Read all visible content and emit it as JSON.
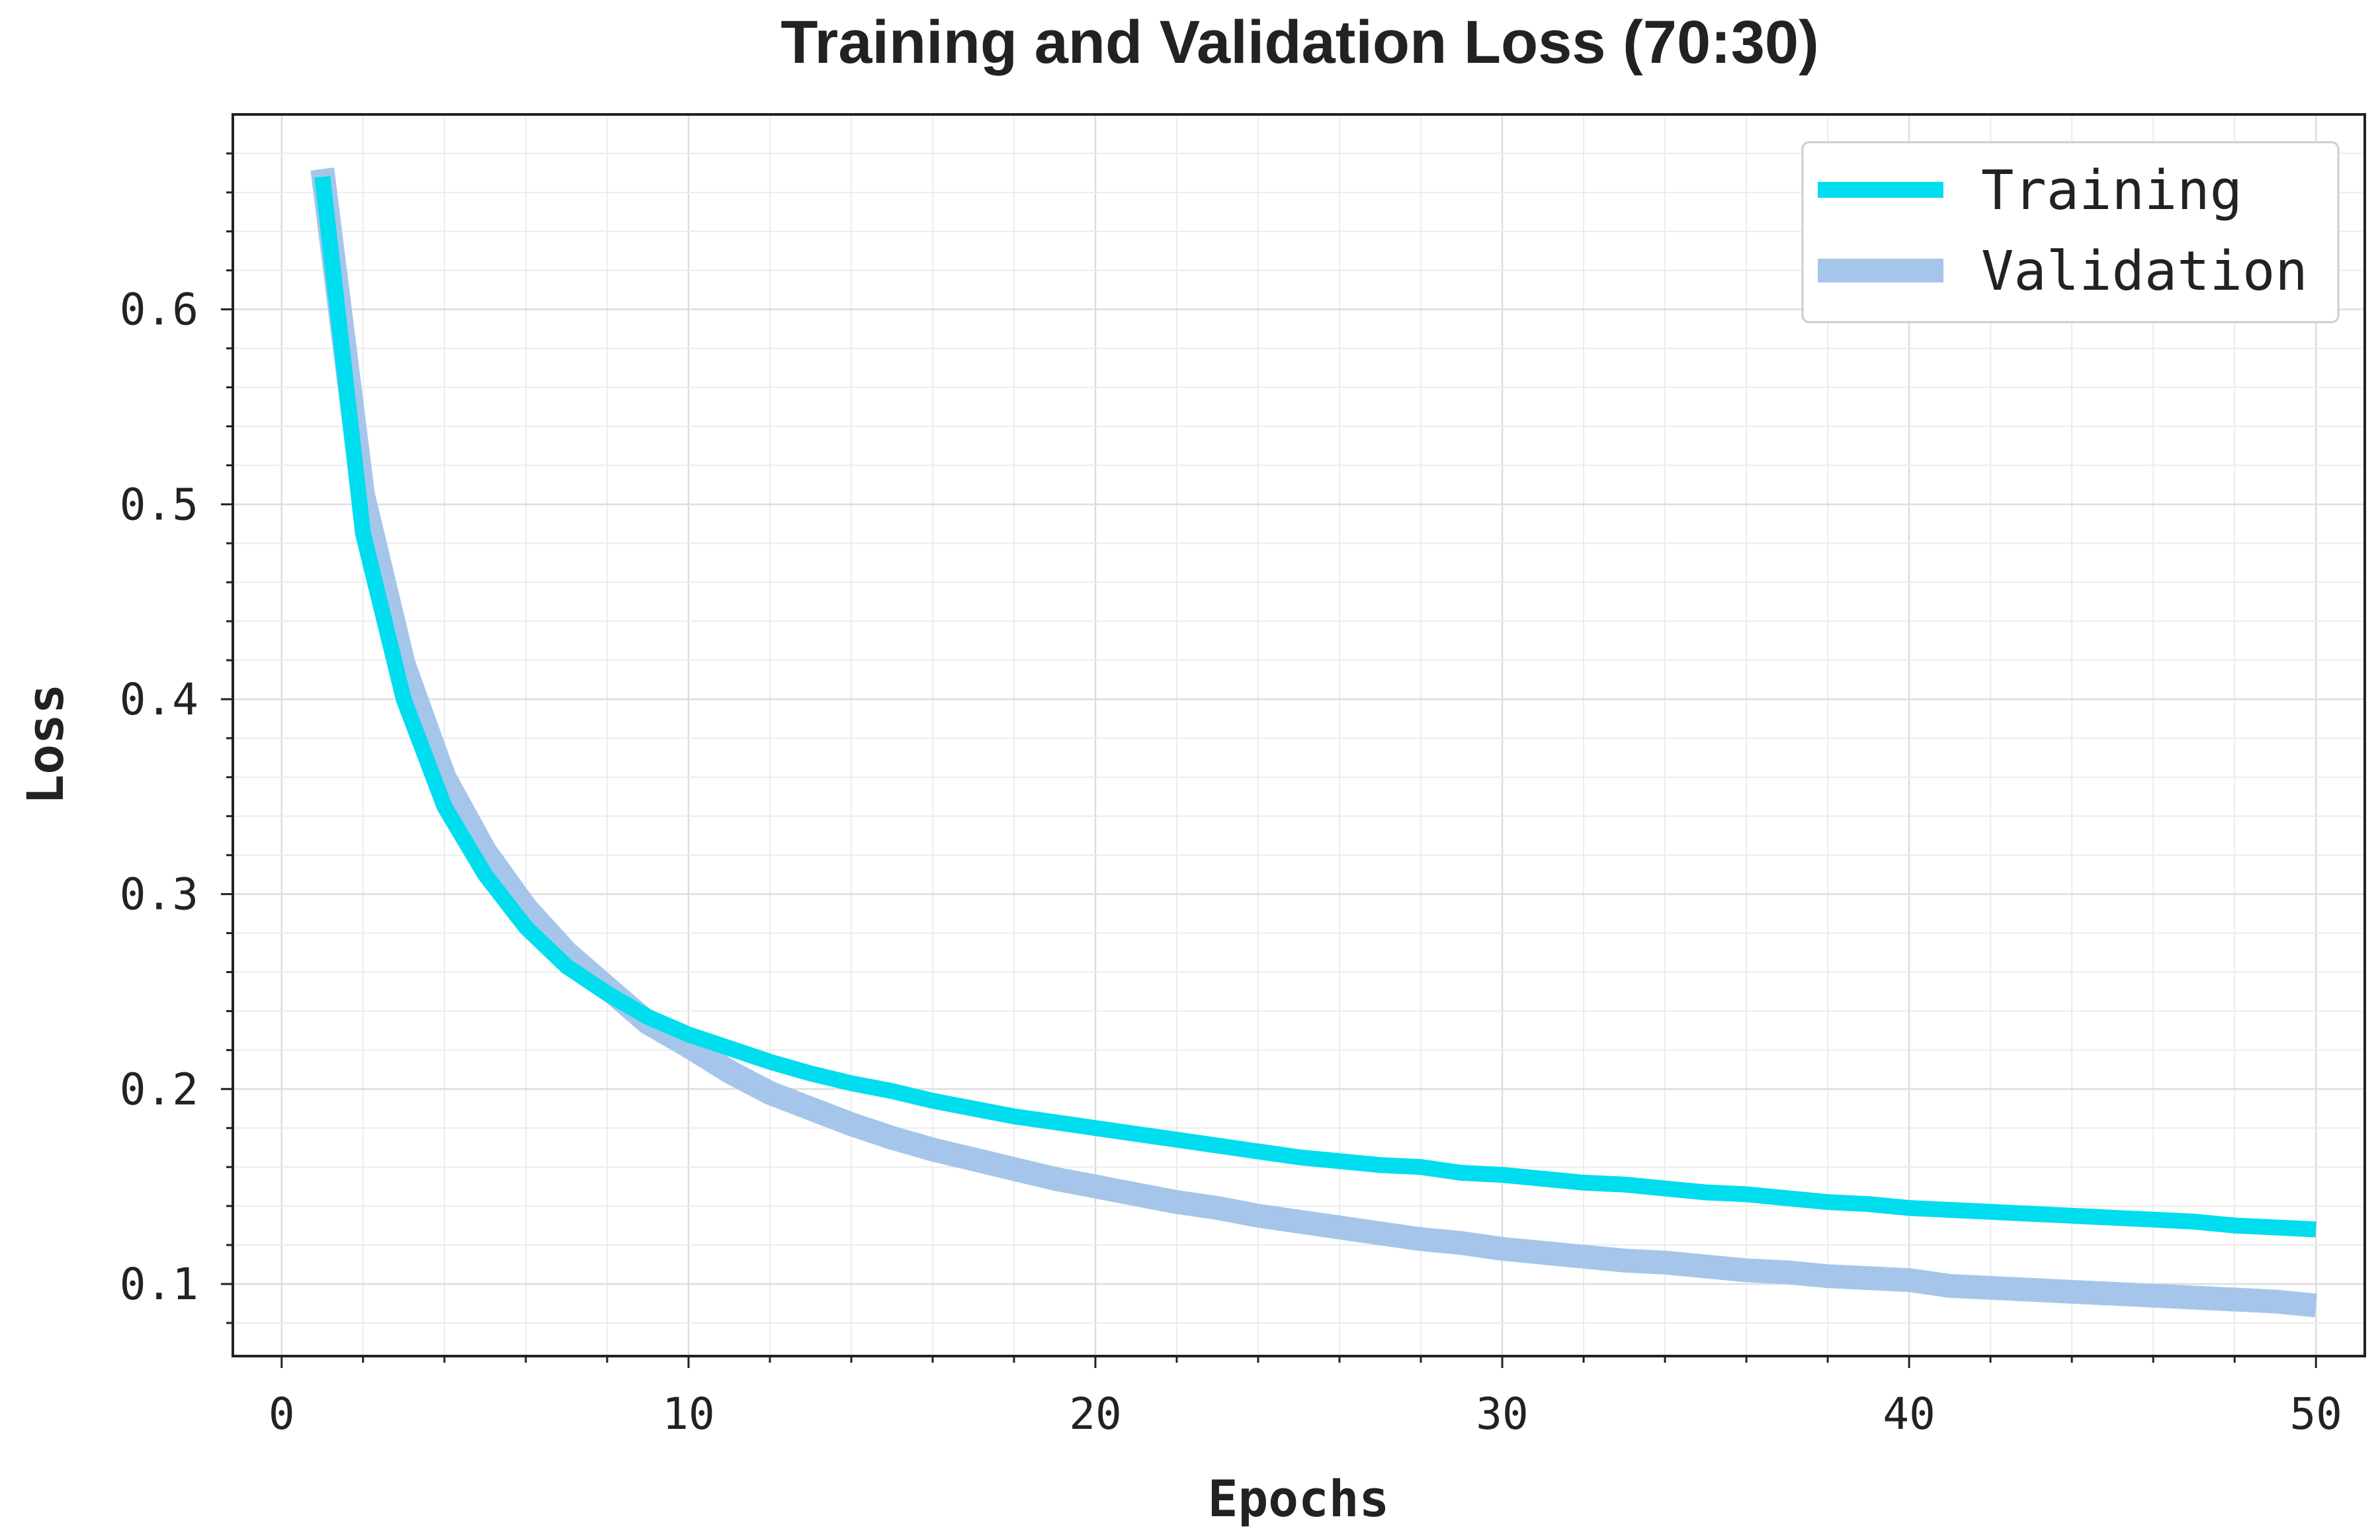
{
  "chart_data": {
    "type": "line",
    "title": "Training and Validation Loss (70:30)",
    "xlabel": "Epochs",
    "ylabel": "Loss",
    "xlim": [
      -1.2,
      51.2
    ],
    "ylim": [
      0.063,
      0.7
    ],
    "xticks": [
      0,
      10,
      20,
      30,
      40,
      50
    ],
    "xtick_labels": [
      "0",
      "10",
      "20",
      "30",
      "40",
      "50"
    ],
    "yticks": [
      0.1,
      0.2,
      0.3,
      0.4,
      0.5,
      0.6
    ],
    "ytick_labels": [
      "0.1",
      "0.2",
      "0.3",
      "0.4",
      "0.5",
      "0.6"
    ],
    "grid": true,
    "legend": "top-right",
    "x": [
      1,
      2,
      3,
      4,
      5,
      6,
      7,
      8,
      9,
      10,
      11,
      12,
      13,
      14,
      15,
      16,
      17,
      18,
      19,
      20,
      21,
      22,
      23,
      24,
      25,
      26,
      27,
      28,
      29,
      30,
      31,
      32,
      33,
      34,
      35,
      36,
      37,
      38,
      39,
      40,
      41,
      42,
      43,
      44,
      45,
      46,
      47,
      48,
      49,
      50
    ],
    "series": [
      {
        "name": "Training",
        "color": "#00DDEE",
        "values": [
          0.668,
          0.485,
          0.4,
          0.345,
          0.31,
          0.283,
          0.263,
          0.249,
          0.237,
          0.228,
          0.221,
          0.214,
          0.208,
          0.203,
          0.199,
          0.194,
          0.19,
          0.186,
          0.183,
          0.18,
          0.177,
          0.174,
          0.171,
          0.168,
          0.165,
          0.163,
          0.161,
          0.16,
          0.157,
          0.156,
          0.154,
          0.152,
          0.151,
          0.149,
          0.147,
          0.146,
          0.144,
          0.142,
          0.141,
          0.139,
          0.138,
          0.137,
          0.136,
          0.135,
          0.134,
          0.133,
          0.132,
          0.13,
          0.129,
          0.128
        ]
      },
      {
        "name": "Validation",
        "color": "#A5C6EA",
        "values": [
          0.672,
          0.505,
          0.418,
          0.36,
          0.322,
          0.293,
          0.27,
          0.252,
          0.234,
          0.222,
          0.209,
          0.198,
          0.19,
          0.182,
          0.175,
          0.169,
          0.164,
          0.159,
          0.154,
          0.15,
          0.146,
          0.142,
          0.139,
          0.135,
          0.132,
          0.129,
          0.126,
          0.123,
          0.121,
          0.118,
          0.116,
          0.114,
          0.112,
          0.111,
          0.109,
          0.107,
          0.106,
          0.104,
          0.103,
          0.102,
          0.099,
          0.098,
          0.097,
          0.096,
          0.095,
          0.094,
          0.093,
          0.092,
          0.091,
          0.089
        ]
      }
    ]
  }
}
